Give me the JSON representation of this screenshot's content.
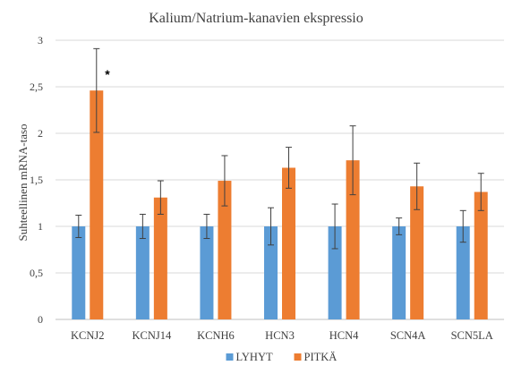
{
  "chart_data": {
    "type": "bar",
    "title": "Kalium/Natrium-kanavien ekspressio",
    "xlabel": "",
    "ylabel": "Suhteellinen mRNA-taso",
    "ylim": [
      0,
      3
    ],
    "yticks": [
      "0",
      "0,5",
      "1",
      "1,5",
      "2",
      "2,5",
      "3"
    ],
    "yticks_values": [
      0,
      0.5,
      1,
      1.5,
      2,
      2.5,
      3
    ],
    "grid": true,
    "legend": "bottom",
    "categories": [
      "KCNJ2",
      "KCNJ14",
      "KCNH6",
      "HCN3",
      "HCN4",
      "SCN4A",
      "SCN5LA"
    ],
    "series": [
      {
        "name": "LYHYT",
        "color": "#5b9bd5",
        "values": [
          1,
          1,
          1,
          1,
          1,
          1,
          1
        ],
        "error": [
          0.12,
          0.13,
          0.13,
          0.2,
          0.24,
          0.09,
          0.17
        ]
      },
      {
        "name": "PITKÄ",
        "color": "#ed7d31",
        "values": [
          2.46,
          1.31,
          1.49,
          1.63,
          1.71,
          1.43,
          1.37
        ],
        "error": [
          0.45,
          0.18,
          0.27,
          0.22,
          0.37,
          0.25,
          0.2
        ]
      }
    ],
    "annotations": [
      {
        "category": "KCNJ2",
        "series": "PITKÄ",
        "text": "*"
      }
    ]
  }
}
